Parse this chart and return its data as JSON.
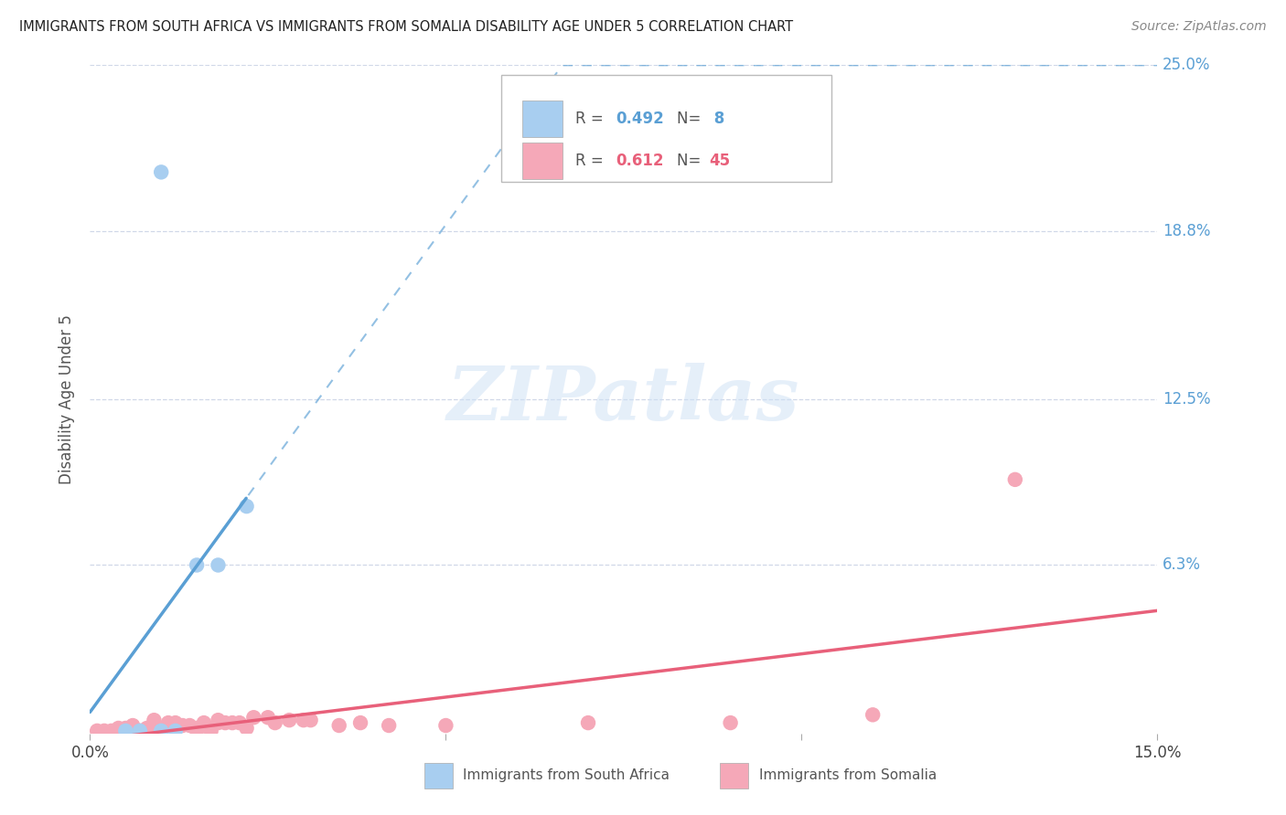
{
  "title": "IMMIGRANTS FROM SOUTH AFRICA VS IMMIGRANTS FROM SOMALIA DISABILITY AGE UNDER 5 CORRELATION CHART",
  "source": "Source: ZipAtlas.com",
  "ylabel": "Disability Age Under 5",
  "xlim": [
    0.0,
    0.15
  ],
  "ylim": [
    0.0,
    0.25
  ],
  "ytick_labels": [
    "6.3%",
    "12.5%",
    "18.8%",
    "25.0%"
  ],
  "ytick_values": [
    0.063,
    0.125,
    0.188,
    0.25
  ],
  "legend1_label": "Immigrants from South Africa",
  "legend2_label": "Immigrants from Somalia",
  "R1": "0.492",
  "N1": "8",
  "R2": "0.612",
  "N2": "45",
  "blue_color": "#a8cef0",
  "pink_color": "#f5a8b8",
  "blue_line_color": "#5a9fd4",
  "pink_line_color": "#e8607a",
  "blue_scatter_x": [
    0.005,
    0.007,
    0.01,
    0.012,
    0.015,
    0.018,
    0.022,
    0.01
  ],
  "blue_scatter_y": [
    0.001,
    0.001,
    0.001,
    0.001,
    0.063,
    0.063,
    0.085,
    0.21
  ],
  "pink_scatter_x": [
    0.001,
    0.002,
    0.003,
    0.004,
    0.004,
    0.005,
    0.005,
    0.006,
    0.006,
    0.007,
    0.008,
    0.008,
    0.009,
    0.009,
    0.01,
    0.01,
    0.011,
    0.012,
    0.012,
    0.013,
    0.014,
    0.015,
    0.015,
    0.016,
    0.017,
    0.018,
    0.018,
    0.019,
    0.02,
    0.021,
    0.022,
    0.023,
    0.025,
    0.026,
    0.028,
    0.03,
    0.031,
    0.035,
    0.038,
    0.042,
    0.05,
    0.07,
    0.09,
    0.11,
    0.13
  ],
  "pink_scatter_y": [
    0.001,
    0.001,
    0.001,
    0.001,
    0.002,
    0.002,
    0.001,
    0.002,
    0.003,
    0.001,
    0.002,
    0.001,
    0.003,
    0.005,
    0.002,
    0.001,
    0.004,
    0.002,
    0.004,
    0.003,
    0.003,
    0.002,
    0.001,
    0.004,
    0.001,
    0.004,
    0.005,
    0.004,
    0.004,
    0.004,
    0.002,
    0.006,
    0.006,
    0.004,
    0.005,
    0.005,
    0.005,
    0.003,
    0.004,
    0.003,
    0.003,
    0.004,
    0.004,
    0.007,
    0.095
  ],
  "watermark_text": "ZIPatlas",
  "background_color": "#ffffff",
  "grid_color": "#d0d8e8"
}
